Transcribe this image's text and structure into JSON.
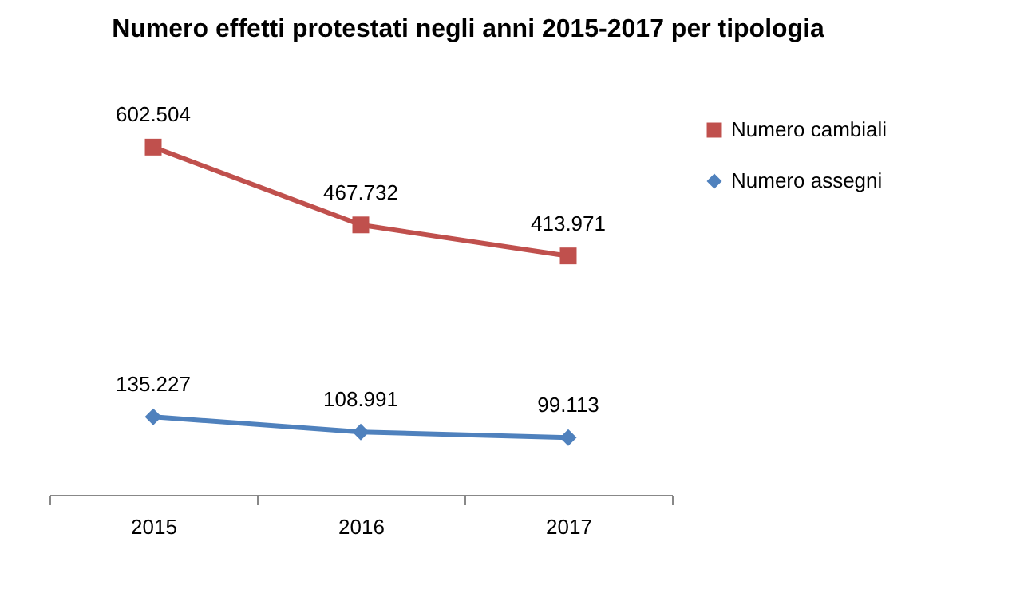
{
  "chart_data": {
    "type": "line",
    "title": "Numero effetti protestati negli anni 2015-2017 per tipologia",
    "categories": [
      "2015",
      "2016",
      "2017"
    ],
    "series": [
      {
        "name": "Numero cambiali",
        "color": "#c0504d",
        "marker": "square",
        "values": [
          602504,
          467732,
          413971
        ],
        "value_labels": [
          "602.504",
          "467.732",
          "413.971"
        ]
      },
      {
        "name": "Numero assegni",
        "color": "#4f81bd",
        "marker": "diamond",
        "values": [
          135227,
          108991,
          99113
        ],
        "value_labels": [
          "135.227",
          "108.991",
          "99.113"
        ]
      }
    ],
    "tick_labels": "x",
    "grid": false,
    "legend": "right"
  }
}
